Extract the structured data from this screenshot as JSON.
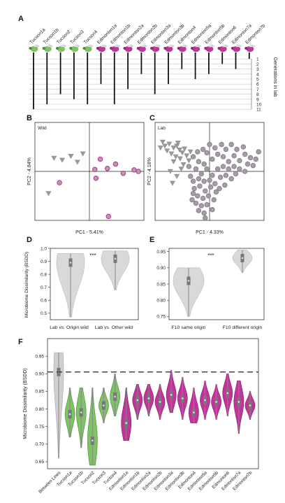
{
  "panels": {
    "A": {
      "letter": "A",
      "lines": [
        "Tucson1a",
        "Tucson1b",
        "Tucson2",
        "Tucson3",
        "Tucson4",
        "Edmonton1a",
        "Edmonton1b",
        "Edmonton2a",
        "Edmonton2b",
        "Edmonton3a",
        "Edmonton3b",
        "Edmonton4",
        "Edmonton5a",
        "Edmonton5b",
        "Edmonton6",
        "Edmonton7a",
        "Edmonton7b"
      ],
      "line_origin": [
        "tucson",
        "tucson",
        "tucson",
        "tucson",
        "tucson",
        "edmonton",
        "edmonton",
        "edmonton",
        "edmonton",
        "edmonton",
        "edmonton",
        "edmonton",
        "edmonton",
        "edmonton",
        "edmonton",
        "edmonton",
        "edmonton"
      ],
      "generations": [
        11,
        10,
        8,
        9,
        10,
        6,
        10,
        7,
        4,
        8,
        6,
        3,
        5,
        4,
        2,
        3,
        1
      ],
      "gen_ticks": [
        "1",
        "2",
        "3",
        "4",
        "5",
        "6",
        "7",
        "8",
        "9",
        "10",
        "11"
      ],
      "axis_label": "Generations in lab"
    },
    "B": {
      "letter": "B",
      "tag": "Wild",
      "xlabel": "PC1 - 5.41%",
      "ylabel": "PC2 - 4.84%"
    },
    "C": {
      "letter": "C",
      "tag": "Lab",
      "xlabel": "PC1 - 4.33%",
      "ylabel": "PC2 - 4.18%"
    },
    "D": {
      "letter": "D",
      "ylabel": "Microbiome Dissimilarity (BSDD)",
      "signif": "***",
      "categories": [
        "Lab vs. Origin wild",
        "Lab vs. Other wild"
      ]
    },
    "E": {
      "letter": "E",
      "signif": "***",
      "categories": [
        "F10 same origin",
        "F10 different origin"
      ]
    },
    "F": {
      "letter": "F",
      "ylabel": "Microbiome Dissimilarity (BSDD)"
    }
  },
  "colors": {
    "tucson": "#7dc464",
    "edmonton": "#c2349a",
    "edmonton_dark": "#8a2a78",
    "tucson_dark": "#4e8a3a",
    "gray": "#999999",
    "violin_gray": "#d9d9d9"
  },
  "chart_data": [
    {
      "type": "scatter",
      "panel": "B",
      "title": "Wild",
      "xlabel": "PC1 - 5.41%",
      "ylabel": "PC2 - 4.84%",
      "xlim": [
        -1,
        1
      ],
      "ylim": [
        -1,
        1
      ],
      "series": [
        {
          "marker": "triangle",
          "points": [
            [
              -0.65,
              0.27
            ],
            [
              -0.5,
              0.23
            ],
            [
              -0.34,
              0.31
            ],
            [
              -0.22,
              0.19
            ],
            [
              -0.12,
              0.36
            ],
            [
              -0.75,
              -0.45
            ]
          ]
        },
        {
          "marker": "circle",
          "points": [
            [
              -0.55,
              -0.23
            ],
            [
              0.1,
              0.04
            ],
            [
              0.2,
              0.25
            ],
            [
              0.33,
              0.06
            ],
            [
              0.48,
              0.15
            ],
            [
              0.62,
              -0.04
            ],
            [
              0.12,
              -0.14
            ],
            [
              0.82,
              0.03
            ],
            [
              0.9,
              0.0
            ],
            [
              0.35,
              -0.92
            ]
          ]
        }
      ]
    },
    {
      "type": "scatter",
      "panel": "C",
      "title": "Lab",
      "xlabel": "PC1 - 4.33%",
      "ylabel": "PC2 - 4.18%",
      "xlim": [
        -1,
        1
      ],
      "ylim": [
        -1,
        1
      ],
      "series": [
        {
          "marker": "triangle",
          "points": [
            [
              -0.82,
              0.52
            ],
            [
              -0.74,
              0.56
            ],
            [
              -0.66,
              0.48
            ],
            [
              -0.6,
              0.52
            ],
            [
              -0.55,
              0.44
            ],
            [
              -0.5,
              0.38
            ],
            [
              -0.78,
              0.42
            ],
            [
              -0.7,
              0.36
            ],
            [
              -0.62,
              0.3
            ],
            [
              -0.46,
              0.46
            ],
            [
              -0.42,
              0.32
            ],
            [
              -0.38,
              0.22
            ],
            [
              -0.86,
              0.6
            ],
            [
              -0.9,
              0.48
            ],
            [
              -0.54,
              0.26
            ],
            [
              -0.66,
              0.2
            ],
            [
              -0.72,
              0.0
            ],
            [
              -0.6,
              -0.1
            ],
            [
              -0.52,
              0.05
            ],
            [
              -0.48,
              0.14
            ],
            [
              -0.35,
              0.4
            ],
            [
              -0.68,
              -0.24
            ],
            [
              -0.58,
              0.58
            ]
          ]
        },
        {
          "marker": "circle",
          "points": [
            [
              -0.3,
              0.3
            ],
            [
              -0.2,
              0.2
            ],
            [
              -0.1,
              0.15
            ],
            [
              0.05,
              0.25
            ],
            [
              0.15,
              0.35
            ],
            [
              0.25,
              0.3
            ],
            [
              0.35,
              0.2
            ],
            [
              0.45,
              0.32
            ],
            [
              0.55,
              0.22
            ],
            [
              0.65,
              0.35
            ],
            [
              0.75,
              0.28
            ],
            [
              0.8,
              0.12
            ],
            [
              0.1,
              0.48
            ],
            [
              0.22,
              0.55
            ],
            [
              -0.05,
              0.38
            ],
            [
              0.3,
              0.45
            ],
            [
              0.5,
              0.45
            ],
            [
              0.62,
              0.5
            ],
            [
              -0.25,
              0.05
            ],
            [
              -0.15,
              -0.05
            ],
            [
              -0.05,
              0.05
            ],
            [
              0.05,
              -0.08
            ],
            [
              0.15,
              0.05
            ],
            [
              0.25,
              0.1
            ],
            [
              0.35,
              0.05
            ],
            [
              0.45,
              0.1
            ],
            [
              0.55,
              0.05
            ],
            [
              0.65,
              0.0
            ],
            [
              -0.3,
              -0.2
            ],
            [
              -0.2,
              -0.15
            ],
            [
              -0.1,
              -0.2
            ],
            [
              0.0,
              -0.18
            ],
            [
              0.1,
              -0.25
            ],
            [
              0.2,
              -0.12
            ],
            [
              0.3,
              -0.08
            ],
            [
              0.4,
              -0.15
            ],
            [
              -0.28,
              -0.35
            ],
            [
              -0.18,
              -0.3
            ],
            [
              -0.08,
              -0.4
            ],
            [
              0.02,
              -0.32
            ],
            [
              0.12,
              -0.42
            ],
            [
              -0.22,
              -0.5
            ],
            [
              -0.12,
              -0.55
            ],
            [
              -0.02,
              -0.5
            ],
            [
              0.08,
              -0.58
            ],
            [
              -0.25,
              -0.65
            ],
            [
              -0.15,
              -0.7
            ],
            [
              -0.05,
              -0.68
            ],
            [
              -0.2,
              -0.8
            ],
            [
              -0.1,
              -0.85
            ],
            [
              -0.3,
              -0.45
            ],
            [
              -0.35,
              -0.1
            ],
            [
              -0.38,
              0.1
            ],
            [
              0.18,
              -0.35
            ],
            [
              0.28,
              -0.28
            ],
            [
              0.48,
              -0.05
            ],
            [
              0.7,
              0.15
            ],
            [
              0.85,
              0.25
            ],
            [
              0.9,
              0.4
            ],
            [
              0.4,
              0.55
            ],
            [
              0.0,
              0.55
            ],
            [
              -0.12,
              0.45
            ],
            [
              -0.22,
              0.4
            ],
            [
              -0.32,
              -0.58
            ],
            [
              0.05,
              -0.78
            ],
            [
              -0.08,
              -0.95
            ]
          ]
        }
      ]
    },
    {
      "type": "violin",
      "panel": "D",
      "ylabel": "Microbiome Dissimilarity (BSDD)",
      "ylim": [
        0.45,
        1.0
      ],
      "yticks": [
        0.5,
        0.6,
        0.7,
        0.8,
        0.9,
        1.0
      ],
      "categories": [
        "Lab vs. Origin wild",
        "Lab vs. Other wild"
      ],
      "medians": [
        0.89,
        0.92
      ],
      "ranges": [
        [
          0.47,
          0.96
        ],
        [
          0.68,
          0.98
        ]
      ]
    },
    {
      "type": "violin",
      "panel": "E",
      "ylim": [
        0.74,
        0.96
      ],
      "yticks": [
        0.75,
        0.8,
        0.85,
        0.9,
        0.95
      ],
      "categories": [
        "F10 same origin",
        "F10 different origin"
      ],
      "medians": [
        0.86,
        0.93
      ],
      "ranges": [
        [
          0.75,
          0.9
        ],
        [
          0.885,
          0.955
        ]
      ]
    },
    {
      "type": "violin",
      "panel": "F",
      "ylabel": "Microbiome Dissimilarity (BSDD)",
      "ylim": [
        0.63,
        1.0
      ],
      "yticks": [
        0.65,
        0.7,
        0.75,
        0.8,
        0.85,
        0.9,
        0.95
      ],
      "reference_line": 0.905,
      "categories": [
        "Between Lines",
        "Tucson1a",
        "Tucson1b",
        "Tucson2",
        "Tucson3",
        "Tucson4",
        "Edmonton1a",
        "Edmonton1b",
        "Edmonton2a",
        "Edmonton2b",
        "Edmonton3a",
        "Edmonton3b",
        "Edmonton4",
        "Edmonton5a",
        "Edmonton5b",
        "Edmonton6",
        "Edmonton7a",
        "Edmonton7b"
      ],
      "medians": [
        0.905,
        0.785,
        0.79,
        0.71,
        0.81,
        0.835,
        0.76,
        0.825,
        0.83,
        0.82,
        0.84,
        0.83,
        0.79,
        0.825,
        0.82,
        0.845,
        0.82,
        0.81
      ],
      "ranges": [
        [
          0.66,
          0.96
        ],
        [
          0.72,
          0.86
        ],
        [
          0.69,
          0.86
        ],
        [
          0.64,
          0.86
        ],
        [
          0.76,
          0.86
        ],
        [
          0.78,
          0.9
        ],
        [
          0.71,
          0.86
        ],
        [
          0.77,
          0.87
        ],
        [
          0.78,
          0.87
        ],
        [
          0.77,
          0.87
        ],
        [
          0.79,
          0.91
        ],
        [
          0.77,
          0.89
        ],
        [
          0.76,
          0.86
        ],
        [
          0.77,
          0.88
        ],
        [
          0.77,
          0.87
        ],
        [
          0.78,
          0.9
        ],
        [
          0.73,
          0.88
        ],
        [
          0.77,
          0.85
        ]
      ]
    }
  ]
}
